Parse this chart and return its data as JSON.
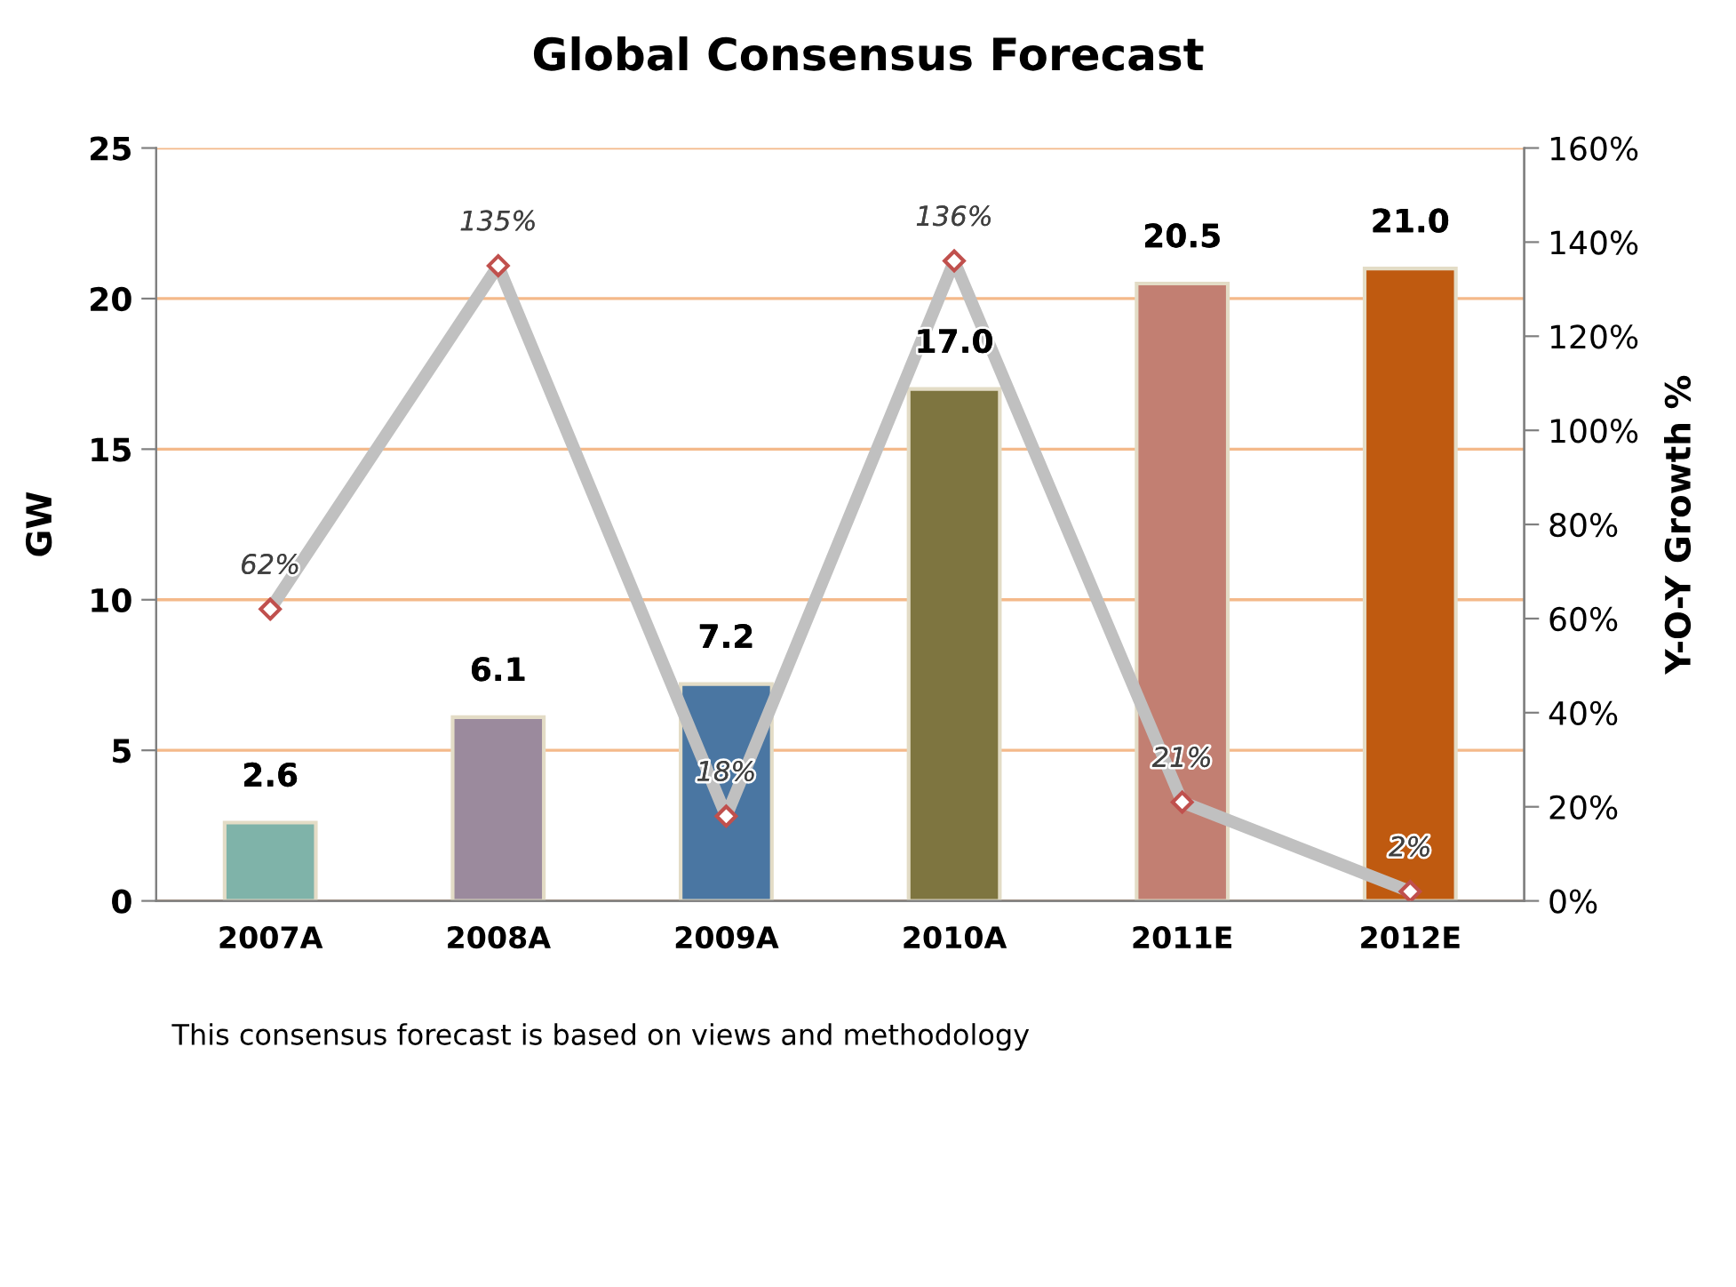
{
  "chart_data": {
    "type": "bar",
    "title": "Global Consensus Forecast",
    "ylabel": "GW",
    "y2label": "Y-O-Y Growth %",
    "categories": [
      "2007A",
      "2008A",
      "2009A",
      "2010A",
      "2011E",
      "2012E"
    ],
    "series": [
      {
        "colors": [
          "#7fb3a9",
          "#9b8a9d",
          "#4a76a2",
          "#7e7540",
          "#c27f72",
          "#bf5a10"
        ],
        "values": [
          2.6,
          6.1,
          7.2,
          17.0,
          20.5,
          21.0
        ],
        "value_labels": [
          "2.6",
          "6.1",
          "7.2",
          "17.0",
          "20.5",
          "21.0"
        ]
      },
      {
        "type": "line",
        "axis": "y2",
        "color": "#c0c0c0",
        "values": [
          62,
          135,
          18,
          136,
          21,
          2
        ],
        "value_labels": [
          "62%",
          "135%",
          "18%",
          "136%",
          "21%",
          "2%"
        ]
      }
    ],
    "ylim": [
      0,
      25
    ],
    "yticks": [
      0,
      5,
      10,
      15,
      20,
      25
    ],
    "y2lim": [
      0,
      160
    ],
    "y2ticks": [
      {
        "value": 0,
        "label": "0%"
      },
      {
        "value": 20,
        "label": "20%"
      },
      {
        "value": 40,
        "label": "40%"
      },
      {
        "value": 60,
        "label": "60%"
      },
      {
        "value": 80,
        "label": "80%"
      },
      {
        "value": 100,
        "label": "100%"
      },
      {
        "value": 120,
        "label": "120%"
      },
      {
        "value": 140,
        "label": "140%"
      },
      {
        "value": 160,
        "label": "160%"
      }
    ],
    "grid": "y",
    "marker": "diamond",
    "line_style": "solid",
    "annotations": [
      "This consensus forecast is based on views and methodology"
    ]
  }
}
